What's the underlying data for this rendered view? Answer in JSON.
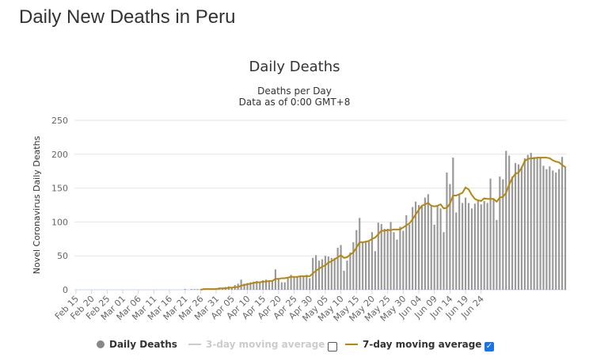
{
  "page": {
    "title": "Daily New Deaths in Peru"
  },
  "chart_data": {
    "type": "bar",
    "title": "Daily Deaths",
    "subtitle": "Deaths per Day",
    "subtitle2": "Data as of 0:00 GMT+8",
    "ylabel": "Novel Coronavirus Daily Deaths",
    "ylim": [
      0,
      250
    ],
    "yticks": [
      0,
      50,
      100,
      150,
      200,
      250
    ],
    "grid": true,
    "start_date": "Feb 15",
    "xtick_labels": [
      "Feb 15",
      "Feb 20",
      "Feb 25",
      "Mar 01",
      "Mar 06",
      "Mar 11",
      "Mar 16",
      "Mar 21",
      "Mar 26",
      "Mar 31",
      "Apr 05",
      "Apr 10",
      "Apr 15",
      "Apr 20",
      "Apr 25",
      "Apr 30",
      "May 05",
      "May 10",
      "May 15",
      "May 20",
      "May 25",
      "May 30",
      "Jun 04",
      "Jun 09",
      "Jun 14",
      "Jun 19",
      "Jun 24"
    ],
    "xtick_every": 5,
    "series": [
      {
        "name": "Daily Deaths",
        "type": "bar",
        "color": "#999999",
        "values": [
          0,
          0,
          0,
          0,
          0,
          0,
          0,
          0,
          0,
          0,
          0,
          0,
          0,
          0,
          0,
          0,
          0,
          0,
          0,
          0,
          0,
          0,
          0,
          0,
          0,
          0,
          0,
          0,
          0,
          0,
          0,
          0,
          0,
          0,
          0,
          1,
          0,
          1,
          1,
          1,
          1,
          1,
          1,
          1,
          2,
          2,
          3,
          3,
          4,
          5,
          4,
          7,
          9,
          15,
          9,
          10,
          11,
          12,
          13,
          12,
          14,
          15,
          14,
          13,
          30,
          17,
          11,
          11,
          17,
          22,
          18,
          19,
          19,
          21,
          22,
          17,
          47,
          51,
          43,
          45,
          50,
          49,
          47,
          47,
          62,
          66,
          28,
          43,
          55,
          70,
          88,
          106,
          71,
          70,
          71,
          85,
          57,
          99,
          97,
          90,
          90,
          100,
          85,
          74,
          93,
          87,
          110,
          96,
          122,
          130,
          125,
          125,
          136,
          141,
          125,
          96,
          125,
          120,
          85,
          173,
          156,
          195,
          114,
          141,
          128,
          136,
          128,
          120,
          127,
          133,
          126,
          131,
          128,
          164,
          135,
          103,
          167,
          163,
          205,
          198,
          167,
          187,
          185,
          182,
          194,
          199,
          202,
          196,
          196,
          196,
          183,
          178,
          182,
          176,
          173,
          178,
          196,
          182
        ]
      },
      {
        "name": "3-day moving average",
        "type": "line",
        "color": "#cccccc",
        "visible": false
      },
      {
        "name": "7-day moving average",
        "type": "line",
        "color": "#b8860b",
        "visible": true,
        "values": [
          0,
          0,
          0,
          0,
          0,
          0,
          0,
          0,
          0,
          0,
          0,
          0,
          0,
          0,
          0,
          0,
          0,
          0,
          0,
          0,
          0,
          0,
          0,
          0,
          0,
          0,
          0,
          0,
          0,
          0,
          0,
          0,
          0,
          0,
          0,
          0,
          0,
          0,
          0,
          0,
          0,
          1,
          1,
          1,
          1,
          1,
          2,
          2,
          2,
          3,
          3,
          4,
          4,
          6,
          7,
          8,
          9,
          10,
          11,
          11,
          12,
          12,
          13,
          13,
          16,
          16,
          17,
          17,
          18,
          19,
          19,
          19,
          20,
          20,
          20,
          20,
          24,
          28,
          31,
          34,
          36,
          40,
          42,
          45,
          48,
          51,
          47,
          48,
          52,
          55,
          62,
          70,
          70,
          71,
          72,
          75,
          77,
          82,
          87,
          87,
          88,
          88,
          89,
          89,
          89,
          92,
          95,
          98,
          104,
          111,
          118,
          124,
          126,
          128,
          124,
          123,
          124,
          126,
          120,
          121,
          127,
          139,
          139,
          141,
          143,
          151,
          148,
          140,
          134,
          132,
          131,
          135,
          134,
          134,
          134,
          130,
          136,
          137,
          143,
          155,
          165,
          171,
          173,
          180,
          190,
          193,
          194,
          194,
          195,
          195,
          195,
          195,
          194,
          191,
          189,
          188,
          184,
          181
        ]
      }
    ],
    "legend": {
      "position": "bottom",
      "items": [
        {
          "label": "Daily Deaths",
          "checked": null
        },
        {
          "label": "3-day moving average",
          "checked": false
        },
        {
          "label": "7-day moving average",
          "checked": true
        }
      ]
    }
  }
}
